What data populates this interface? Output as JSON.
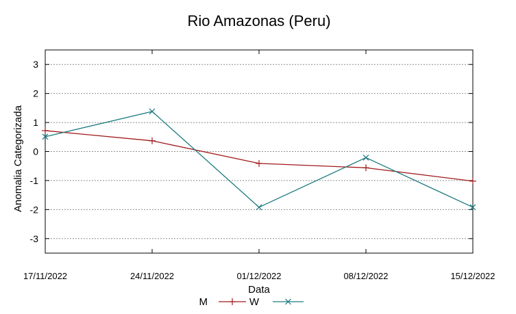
{
  "chart_data": {
    "type": "line",
    "title": "Rio Amazonas (Peru)",
    "xlabel": "Data",
    "ylabel": "Anomalia Categorizada",
    "categories": [
      "17/11/2022",
      "24/11/2022",
      "01/12/2022",
      "08/12/2022",
      "15/12/2022"
    ],
    "ylim": [
      -3.5,
      3.5
    ],
    "yticks": [
      -3,
      -2,
      -1,
      0,
      1,
      2,
      3
    ],
    "ytick_labels": [
      "-3",
      "-2",
      "-1",
      "0",
      "1",
      "2",
      "3"
    ],
    "grid": true,
    "legend_position": "bottom-center",
    "series": [
      {
        "name": "M",
        "values": [
          0.72,
          0.37,
          -0.41,
          -0.56,
          -1.02
        ],
        "color": "#a01818",
        "marker": "plus"
      },
      {
        "name": "W",
        "values": [
          0.51,
          1.38,
          -1.92,
          -0.21,
          -1.92
        ],
        "color": "#1a7a80",
        "marker": "cross"
      }
    ]
  }
}
